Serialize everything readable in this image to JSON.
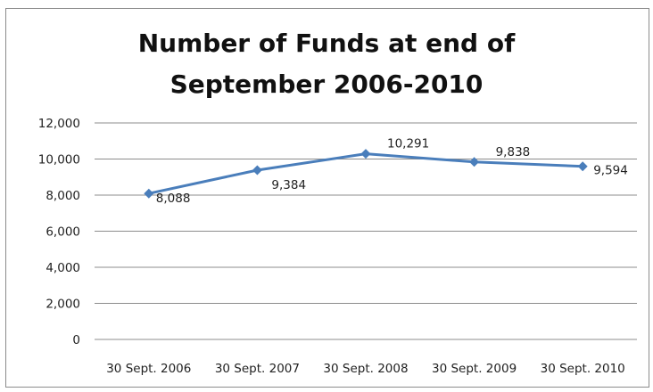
{
  "chart_data": {
    "type": "line",
    "title_lines": [
      "Number of Funds at end of",
      "September 2006-2010"
    ],
    "categories": [
      "30 Sept. 2006",
      "30 Sept. 2007",
      "30 Sept. 2008",
      "30 Sept. 2009",
      "30 Sept. 2010"
    ],
    "values": [
      8088,
      9384,
      10291,
      9838,
      9594
    ],
    "data_labels": [
      "8,088",
      "9,384",
      "10,291",
      "9,838",
      "9,594"
    ],
    "yticks": [
      0,
      2000,
      4000,
      6000,
      8000,
      10000,
      12000
    ],
    "ytick_labels": [
      "0",
      "2,000",
      "4,000",
      "6,000",
      "8,000",
      "10,000",
      "12,000"
    ],
    "ylim": [
      0,
      12000
    ],
    "xlabel": "",
    "ylabel": "",
    "grid": true,
    "legend": "none",
    "line_color": "#4a7ebb",
    "marker": "diamond"
  }
}
